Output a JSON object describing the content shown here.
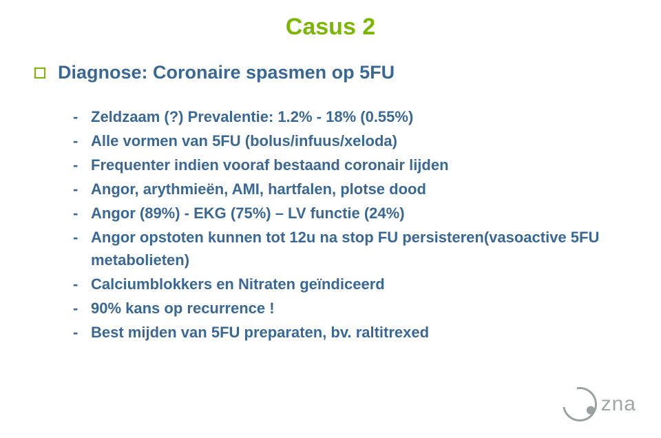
{
  "title": "Casus 2",
  "headline": "Diagnose: Coronaire spasmen op 5FU",
  "bullets": [
    "Zeldzaam (?) Prevalentie: 1.2% - 18%   (0.55%)",
    "Alle vormen van 5FU (bolus/infuus/xeloda)",
    "Frequenter indien vooraf bestaand coronair lijden",
    "Angor, arythmieën, AMI, hartfalen, plotse dood",
    "Angor (89%) - EKG (75%) – LV functie (24%)",
    "Angor opstoten kunnen tot 12u na stop FU persisteren(vasoactive 5FU metabolieten)",
    "Calciumblokkers en Nitraten geïndiceerd",
    "90% kans op recurrence !",
    "Best mijden van 5FU preparaten, bv. raltitrexed"
  ],
  "logo_text": "zna",
  "colors": {
    "accent_green": "#7ab800",
    "text_blue": "#396897",
    "logo_gray": "#9aa0a0",
    "background": "#ffffff"
  },
  "font_sizes_pt": {
    "title": 26,
    "headline": 20,
    "bullet": 17
  }
}
